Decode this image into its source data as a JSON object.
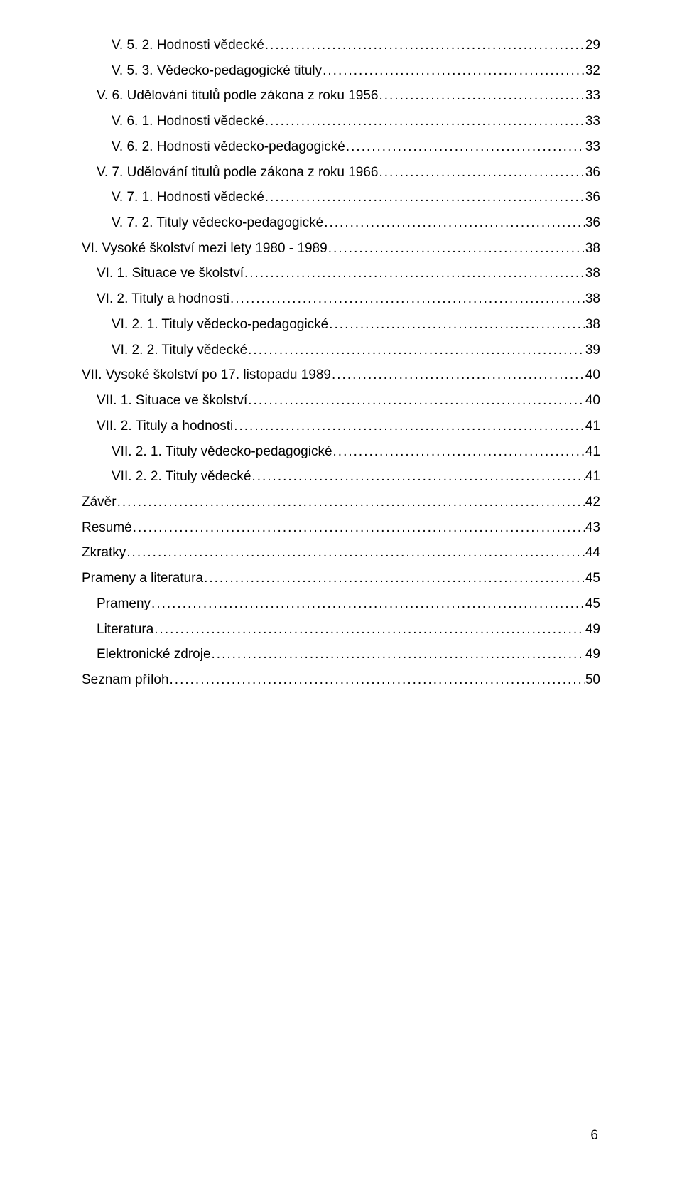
{
  "toc": [
    {
      "label": "V. 5. 2. Hodnosti vědecké",
      "page": "29",
      "indent": 2
    },
    {
      "label": "V. 5. 3. Vědecko-pedagogické tituly",
      "page": "32",
      "indent": 2
    },
    {
      "label": "V. 6. Udělování titulů podle zákona z roku 1956",
      "page": "33",
      "indent": 1
    },
    {
      "label": "V. 6. 1. Hodnosti vědecké",
      "page": "33",
      "indent": 2
    },
    {
      "label": "V. 6. 2. Hodnosti vědecko-pedagogické",
      "page": "33",
      "indent": 2
    },
    {
      "label": "V. 7. Udělování titulů podle zákona z roku 1966",
      "page": "36",
      "indent": 1
    },
    {
      "label": "V. 7. 1. Hodnosti vědecké",
      "page": "36",
      "indent": 2
    },
    {
      "label": "V. 7. 2. Tituly vědecko-pedagogické",
      "page": "36",
      "indent": 2
    },
    {
      "label": "VI. Vysoké školství mezi lety 1980 - 1989",
      "page": "38",
      "indent": 0
    },
    {
      "label": "VI. 1. Situace ve školství",
      "page": "38",
      "indent": 1
    },
    {
      "label": "VI. 2. Tituly a hodnosti",
      "page": "38",
      "indent": 1
    },
    {
      "label": "VI. 2. 1. Tituly vědecko-pedagogické",
      "page": "38",
      "indent": 2
    },
    {
      "label": "VI. 2. 2. Tituly vědecké",
      "page": "39",
      "indent": 2
    },
    {
      "label": "VII. Vysoké školství po 17. listopadu 1989",
      "page": "40",
      "indent": 0
    },
    {
      "label": "VII. 1. Situace ve školství",
      "page": "40",
      "indent": 1
    },
    {
      "label": "VII. 2. Tituly a hodnosti",
      "page": "41",
      "indent": 1
    },
    {
      "label": "VII. 2. 1. Tituly vědecko-pedagogické",
      "page": "41",
      "indent": 2
    },
    {
      "label": "VII. 2. 2. Tituly vědecké",
      "page": "41",
      "indent": 2
    },
    {
      "label": "Závěr",
      "page": "42",
      "indent": 0
    },
    {
      "label": "Resumé",
      "page": "43",
      "indent": 0
    },
    {
      "label": "Zkratky",
      "page": "44",
      "indent": 0
    },
    {
      "label": "Prameny a literatura",
      "page": "45",
      "indent": 0
    },
    {
      "label": "Prameny",
      "page": "45",
      "indent": 1
    },
    {
      "label": "Literatura",
      "page": "49",
      "indent": 1
    },
    {
      "label": "Elektronické zdroje",
      "page": "49",
      "indent": 1
    },
    {
      "label": "Seznam příloh",
      "page": "50",
      "indent": 0
    }
  ],
  "pageNumber": "6"
}
